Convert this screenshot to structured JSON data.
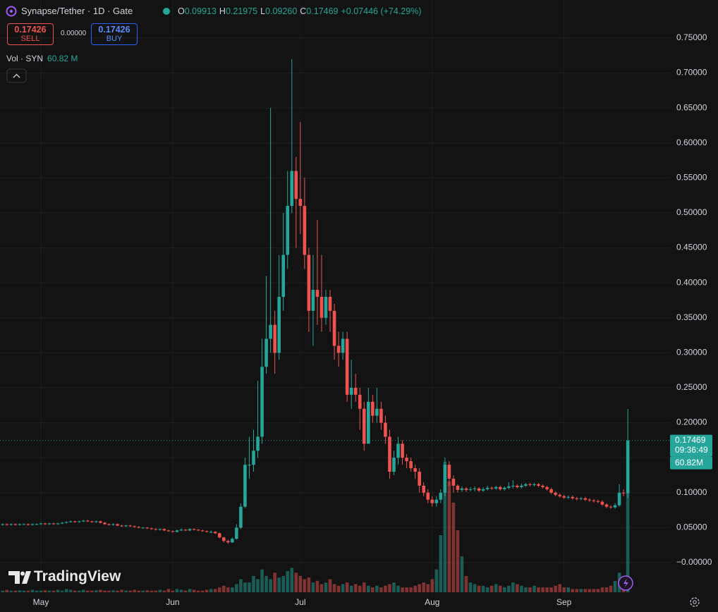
{
  "header": {
    "symbol": "Synapse/Tether · 1D · Gate",
    "ohlc": [
      {
        "label": "O",
        "value": "0.09913"
      },
      {
        "label": "H",
        "value": "0.21975"
      },
      {
        "label": "L",
        "value": "0.09260"
      },
      {
        "label": "C",
        "value": "0.17469"
      }
    ],
    "change": "+0.07446 (+74.29%)"
  },
  "trade": {
    "sell_price": "0.17426",
    "sell": "SELL",
    "spread": "0.00000",
    "buy_price": "0.17426",
    "buy": "BUY"
  },
  "volume_legend": {
    "label": "Vol · SYN",
    "value": "60.82 M"
  },
  "price_tags": {
    "countdown": "09:36:49",
    "volume": "60.82M"
  },
  "branding": "TradingView",
  "chart_data": {
    "type": "candlestick",
    "up_color": "#26a69a",
    "down_color": "#ef5350",
    "grid": true,
    "ylim": [
      -0.0474,
      0.8044
    ],
    "yticks": [
      {
        "value": 0,
        "label": "−0.00000"
      },
      {
        "value": 0.05,
        "label": "0.05000"
      },
      {
        "value": 0.1,
        "label": "0.10000"
      },
      {
        "value": 0.15,
        "label": "0.15000"
      },
      {
        "value": 0.2,
        "label": "0.20000"
      },
      {
        "value": 0.25,
        "label": "0.25000"
      },
      {
        "value": 0.3,
        "label": "0.30000"
      },
      {
        "value": 0.35,
        "label": "0.35000"
      },
      {
        "value": 0.4,
        "label": "0.40000"
      },
      {
        "value": 0.45,
        "label": "0.45000"
      },
      {
        "value": 0.5,
        "label": "0.50000"
      },
      {
        "value": 0.55,
        "label": "0.55000"
      },
      {
        "value": 0.6,
        "label": "0.60000"
      },
      {
        "value": 0.65,
        "label": "0.65000"
      },
      {
        "value": 0.7,
        "label": "0.70000"
      },
      {
        "value": 0.75,
        "label": "0.75000"
      }
    ],
    "categories": [
      null,
      null,
      null,
      null,
      null,
      null,
      null,
      null,
      null,
      null,
      "May",
      null,
      null,
      null,
      null,
      null,
      null,
      null,
      null,
      null,
      null,
      null,
      null,
      null,
      null,
      null,
      null,
      null,
      null,
      null,
      null,
      null,
      null,
      null,
      null,
      null,
      null,
      null,
      null,
      null,
      null,
      "Jun",
      null,
      null,
      null,
      null,
      null,
      null,
      null,
      null,
      null,
      null,
      null,
      null,
      null,
      null,
      null,
      null,
      null,
      null,
      null,
      null,
      null,
      null,
      null,
      null,
      null,
      null,
      null,
      null,
      null,
      "Jul",
      null,
      null,
      null,
      null,
      null,
      null,
      null,
      null,
      null,
      null,
      null,
      null,
      null,
      null,
      null,
      null,
      null,
      null,
      null,
      null,
      null,
      null,
      null,
      null,
      null,
      null,
      null,
      null,
      null,
      null,
      "Aug",
      null,
      null,
      null,
      null,
      null,
      null,
      null,
      null,
      null,
      null,
      null,
      null,
      null,
      null,
      null,
      null,
      null,
      null,
      null,
      null,
      null,
      null,
      null,
      null,
      null,
      null,
      null,
      null,
      null,
      null,
      "Sep",
      null,
      null,
      null,
      null,
      null,
      null,
      null,
      null,
      null,
      null,
      null,
      null,
      null,
      null,
      null
    ],
    "open": [
      0.053,
      0.054,
      0.055,
      0.054,
      0.055,
      0.054,
      0.055,
      0.055,
      0.054,
      0.055,
      0.055,
      0.056,
      0.055,
      0.056,
      0.055,
      0.056,
      0.057,
      0.058,
      0.059,
      0.058,
      0.059,
      0.06,
      0.059,
      0.058,
      0.059,
      0.057,
      0.055,
      0.054,
      0.055,
      0.053,
      0.052,
      0.053,
      0.052,
      0.051,
      0.05,
      0.05,
      0.049,
      0.048,
      0.047,
      0.048,
      0.046,
      0.045,
      0.044,
      0.046,
      0.047,
      0.046,
      0.048,
      0.047,
      0.046,
      0.045,
      0.044,
      0.044,
      0.042,
      0.036,
      0.031,
      0.029,
      0.034,
      0.05,
      0.08,
      0.14,
      0.14,
      0.16,
      0.18,
      0.28,
      0.32,
      0.34,
      0.3,
      0.38,
      0.44,
      0.51,
      0.56,
      0.52,
      0.51,
      0.44,
      0.36,
      0.39,
      0.38,
      0.35,
      0.38,
      0.36,
      0.31,
      0.3,
      0.32,
      0.24,
      0.25,
      0.24,
      0.22,
      0.17,
      0.23,
      0.21,
      0.22,
      0.2,
      0.18,
      0.13,
      0.15,
      0.17,
      0.15,
      0.145,
      0.135,
      0.13,
      0.11,
      0.1,
      0.09,
      0.085,
      0.09,
      0.1,
      0.14,
      0.12,
      0.11,
      0.104,
      0.106,
      0.104,
      0.105,
      0.106,
      0.103,
      0.105,
      0.107,
      0.106,
      0.108,
      0.105,
      0.107,
      0.109,
      0.11,
      0.108,
      0.11,
      0.112,
      0.111,
      0.112,
      0.11,
      0.108,
      0.105,
      0.1,
      0.097,
      0.095,
      0.093,
      0.094,
      0.092,
      0.091,
      0.092,
      0.09,
      0.089,
      0.088,
      0.087,
      0.083,
      0.08,
      0.079,
      0.082,
      0.1,
      0.09913
    ],
    "high": [
      0.055,
      0.056,
      0.056,
      0.056,
      0.056,
      0.056,
      0.056,
      0.056,
      0.056,
      0.056,
      0.057,
      0.057,
      0.057,
      0.057,
      0.057,
      0.058,
      0.059,
      0.06,
      0.06,
      0.06,
      0.061,
      0.061,
      0.06,
      0.06,
      0.06,
      0.058,
      0.056,
      0.056,
      0.056,
      0.054,
      0.054,
      0.054,
      0.053,
      0.052,
      0.051,
      0.051,
      0.05,
      0.049,
      0.049,
      0.049,
      0.047,
      0.046,
      0.047,
      0.049,
      0.048,
      0.049,
      0.049,
      0.048,
      0.047,
      0.046,
      0.046,
      0.045,
      0.043,
      0.037,
      0.033,
      0.036,
      0.055,
      0.085,
      0.15,
      0.18,
      0.19,
      0.26,
      0.32,
      0.41,
      0.65,
      0.36,
      0.44,
      0.5,
      0.56,
      0.72,
      0.58,
      0.63,
      0.55,
      0.45,
      0.44,
      0.49,
      0.44,
      0.39,
      0.39,
      0.37,
      0.33,
      0.33,
      0.33,
      0.29,
      0.27,
      0.25,
      0.23,
      0.25,
      0.24,
      0.25,
      0.23,
      0.21,
      0.19,
      0.16,
      0.18,
      0.175,
      0.155,
      0.15,
      0.14,
      0.135,
      0.115,
      0.105,
      0.095,
      0.095,
      0.105,
      0.15,
      0.145,
      0.125,
      0.112,
      0.109,
      0.108,
      0.108,
      0.109,
      0.108,
      0.108,
      0.11,
      0.109,
      0.11,
      0.11,
      0.109,
      0.115,
      0.118,
      0.112,
      0.113,
      0.114,
      0.114,
      0.114,
      0.114,
      0.112,
      0.11,
      0.107,
      0.102,
      0.099,
      0.097,
      0.096,
      0.096,
      0.094,
      0.094,
      0.094,
      0.092,
      0.091,
      0.09,
      0.089,
      0.085,
      0.082,
      0.085,
      0.112,
      0.105,
      0.21975
    ],
    "low": [
      0.052,
      0.053,
      0.053,
      0.053,
      0.053,
      0.053,
      0.054,
      0.053,
      0.053,
      0.054,
      0.054,
      0.054,
      0.054,
      0.054,
      0.054,
      0.055,
      0.056,
      0.057,
      0.057,
      0.057,
      0.058,
      0.058,
      0.057,
      0.057,
      0.056,
      0.054,
      0.053,
      0.053,
      0.052,
      0.051,
      0.051,
      0.051,
      0.05,
      0.049,
      0.049,
      0.048,
      0.047,
      0.046,
      0.046,
      0.045,
      0.044,
      0.043,
      0.043,
      0.045,
      0.045,
      0.045,
      0.046,
      0.045,
      0.044,
      0.043,
      0.042,
      0.041,
      0.035,
      0.029,
      0.027,
      0.028,
      0.033,
      0.048,
      0.078,
      0.12,
      0.13,
      0.15,
      0.17,
      0.27,
      0.3,
      0.27,
      0.29,
      0.36,
      0.42,
      0.5,
      0.45,
      0.47,
      0.42,
      0.33,
      0.31,
      0.34,
      0.33,
      0.34,
      0.33,
      0.29,
      0.28,
      0.29,
      0.23,
      0.22,
      0.23,
      0.19,
      0.16,
      0.17,
      0.2,
      0.2,
      0.19,
      0.17,
      0.12,
      0.125,
      0.14,
      0.14,
      0.135,
      0.13,
      0.12,
      0.1,
      0.095,
      0.085,
      0.08,
      0.08,
      0.085,
      0.095,
      0.11,
      0.1,
      0.1,
      0.101,
      0.101,
      0.102,
      0.102,
      0.101,
      0.101,
      0.103,
      0.104,
      0.104,
      0.103,
      0.103,
      0.105,
      0.106,
      0.106,
      0.106,
      0.108,
      0.109,
      0.109,
      0.108,
      0.106,
      0.103,
      0.098,
      0.095,
      0.093,
      0.091,
      0.091,
      0.09,
      0.089,
      0.089,
      0.088,
      0.087,
      0.086,
      0.085,
      0.081,
      0.078,
      0.077,
      0.077,
      0.08,
      0.095,
      0.0926
    ],
    "close": [
      0.054,
      0.055,
      0.054,
      0.055,
      0.054,
      0.055,
      0.055,
      0.054,
      0.055,
      0.055,
      0.056,
      0.055,
      0.056,
      0.055,
      0.056,
      0.057,
      0.058,
      0.059,
      0.058,
      0.059,
      0.06,
      0.059,
      0.058,
      0.059,
      0.057,
      0.055,
      0.054,
      0.055,
      0.053,
      0.052,
      0.053,
      0.052,
      0.051,
      0.05,
      0.05,
      0.049,
      0.048,
      0.047,
      0.048,
      0.046,
      0.045,
      0.044,
      0.046,
      0.047,
      0.046,
      0.048,
      0.047,
      0.046,
      0.045,
      0.044,
      0.044,
      0.042,
      0.036,
      0.031,
      0.029,
      0.034,
      0.05,
      0.08,
      0.14,
      0.14,
      0.16,
      0.18,
      0.28,
      0.32,
      0.34,
      0.3,
      0.38,
      0.44,
      0.51,
      0.56,
      0.52,
      0.51,
      0.44,
      0.36,
      0.39,
      0.38,
      0.35,
      0.38,
      0.36,
      0.31,
      0.3,
      0.32,
      0.24,
      0.25,
      0.24,
      0.22,
      0.17,
      0.23,
      0.21,
      0.22,
      0.2,
      0.18,
      0.13,
      0.15,
      0.17,
      0.15,
      0.145,
      0.135,
      0.13,
      0.11,
      0.1,
      0.09,
      0.085,
      0.09,
      0.1,
      0.14,
      0.12,
      0.11,
      0.104,
      0.106,
      0.104,
      0.105,
      0.106,
      0.103,
      0.105,
      0.107,
      0.106,
      0.108,
      0.105,
      0.107,
      0.109,
      0.11,
      0.108,
      0.11,
      0.112,
      0.111,
      0.112,
      0.11,
      0.108,
      0.105,
      0.1,
      0.097,
      0.095,
      0.093,
      0.094,
      0.092,
      0.091,
      0.092,
      0.09,
      0.089,
      0.088,
      0.087,
      0.083,
      0.08,
      0.079,
      0.082,
      0.1,
      0.09913,
      0.17469
    ],
    "volume": [
      1,
      1,
      1.5,
      1,
      1,
      1.2,
      1,
      1,
      1.5,
      1,
      1,
      1.2,
      1,
      1,
      1.5,
      1,
      2,
      1.5,
      1,
      1,
      1.5,
      1,
      1,
      1.2,
      1.5,
      1,
      1,
      1.2,
      1,
      1.5,
      1,
      1,
      1.5,
      1,
      1,
      1.2,
      1,
      1,
      1.5,
      1,
      2,
      1,
      2,
      1.5,
      1,
      2,
      1.5,
      1,
      1,
      1.5,
      2,
      2,
      3,
      4,
      3,
      3,
      5,
      8,
      6,
      6,
      10,
      8,
      14,
      10,
      8,
      12,
      9,
      10,
      13,
      15,
      12,
      10,
      8,
      9,
      6,
      7,
      5,
      6,
      8,
      5,
      4,
      5,
      6,
      4,
      5,
      4,
      6,
      4,
      3,
      4,
      3,
      4,
      5,
      6,
      4,
      3,
      3,
      3,
      4,
      5,
      6,
      5,
      8,
      14,
      35,
      80,
      68,
      55,
      38,
      22,
      10,
      6,
      5,
      4,
      4,
      3,
      4,
      5,
      4,
      3,
      4,
      6,
      5,
      4,
      3,
      3,
      4,
      3,
      3,
      3,
      3,
      4,
      5,
      3,
      3,
      2,
      2,
      2,
      2,
      2,
      2,
      2,
      3,
      3,
      4,
      7,
      12,
      9,
      60.82
    ]
  }
}
